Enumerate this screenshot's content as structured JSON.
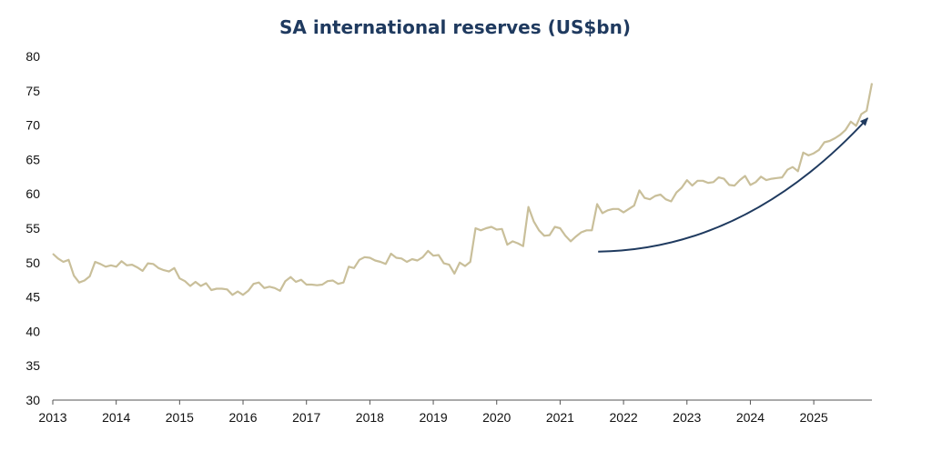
{
  "chart_data": {
    "type": "line",
    "title": "SA international reserves (US$bn)",
    "xlabel": "",
    "ylabel": "",
    "ylim": [
      30,
      80
    ],
    "yticks": [
      30,
      35,
      40,
      45,
      50,
      55,
      60,
      65,
      70,
      75,
      80
    ],
    "xlim": [
      2013.0,
      2025.917
    ],
    "xticks": [
      "2013",
      "2014",
      "2015",
      "2016",
      "2017",
      "2018",
      "2019",
      "2020",
      "2021",
      "2022",
      "2023",
      "2024",
      "2025"
    ],
    "grid": false,
    "legend": "none",
    "colors": {
      "line": "#c9bf9a",
      "arrow": "#1f3a5f",
      "title": "#1f3a5f"
    },
    "annotations": [
      {
        "type": "curved-arrow",
        "from": {
          "x": 2021.6,
          "y": 51.6
        },
        "to": {
          "x": 2025.85,
          "y": 71.0
        }
      }
    ],
    "series": [
      {
        "values": [
          51.3,
          50.6,
          50.1,
          50.4,
          48.1,
          47.1,
          47.4,
          48.0,
          50.1,
          49.8,
          49.4,
          49.6,
          49.4,
          50.2,
          49.6,
          49.7,
          49.3,
          48.8,
          49.9,
          49.8,
          49.2,
          48.9,
          48.7,
          49.2,
          47.7,
          47.3,
          46.6,
          47.2,
          46.6,
          47.0,
          46.0,
          46.2,
          46.2,
          46.1,
          45.3,
          45.8,
          45.3,
          45.9,
          46.9,
          47.1,
          46.3,
          46.5,
          46.3,
          45.9,
          47.3,
          47.9,
          47.2,
          47.5,
          46.8,
          46.8,
          46.7,
          46.8,
          47.3,
          47.4,
          46.9,
          47.1,
          49.4,
          49.2,
          50.4,
          50.8,
          50.7,
          50.3,
          50.1,
          49.8,
          51.3,
          50.7,
          50.6,
          50.1,
          50.5,
          50.3,
          50.8,
          51.7,
          51.0,
          51.1,
          49.9,
          49.7,
          48.4,
          50.0,
          49.5,
          50.1,
          55.0,
          54.7,
          55.0,
          55.2,
          54.8,
          54.9,
          52.6,
          53.1,
          52.8,
          52.4,
          58.1,
          56.0,
          54.7,
          53.9,
          54.0,
          55.2,
          55.0,
          53.9,
          53.1,
          53.8,
          54.4,
          54.7,
          54.7,
          58.5,
          57.2,
          57.6,
          57.8,
          57.8,
          57.3,
          57.8,
          58.3,
          60.5,
          59.4,
          59.2,
          59.7,
          59.9,
          59.2,
          58.9,
          60.2,
          60.9,
          62.0,
          61.2,
          61.9,
          61.9,
          61.6,
          61.7,
          62.4,
          62.2,
          61.3,
          61.2,
          62.0,
          62.6,
          61.3,
          61.7,
          62.5,
          62.0,
          62.2,
          62.3,
          62.4,
          63.5,
          63.9,
          63.3,
          66.0,
          65.6,
          65.9,
          66.4,
          67.5,
          67.7,
          68.1,
          68.6,
          69.3,
          70.5,
          69.9,
          71.6,
          72.1,
          76.1
        ]
      }
    ]
  }
}
